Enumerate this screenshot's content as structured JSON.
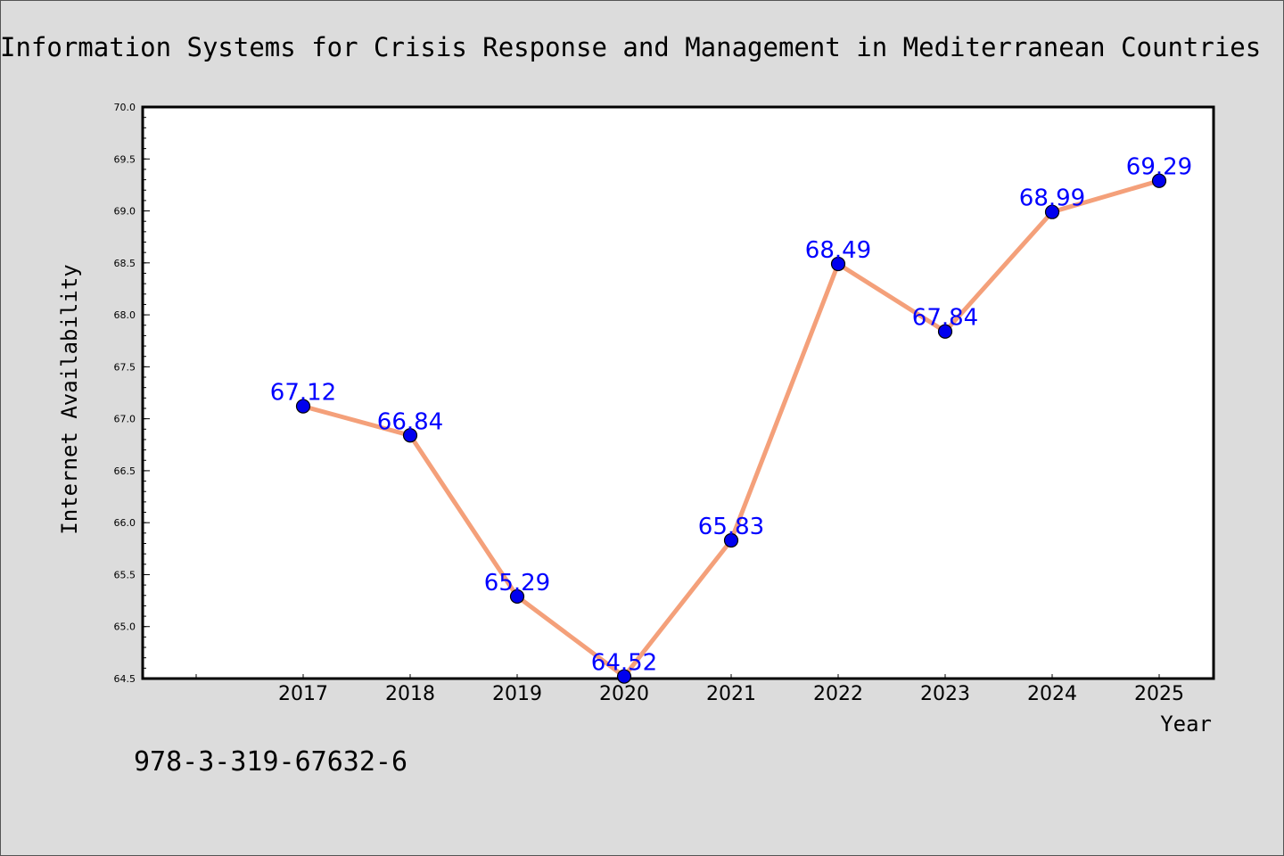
{
  "chart_data": {
    "type": "line",
    "title": "Information Systems for Crisis Response and Management in Mediterranean Countries",
    "xlabel": "Year",
    "ylabel": "Internet Availability",
    "categories": [
      "2017",
      "2018",
      "2019",
      "2020",
      "2021",
      "2022",
      "2023",
      "2024",
      "2025"
    ],
    "series": [
      {
        "values": [
          67.12,
          66.84,
          65.29,
          64.52,
          65.83,
          68.49,
          67.84,
          68.99,
          69.29
        ],
        "line_color": "#f4a07a",
        "marker_color": "#0000ee"
      }
    ],
    "data_labels": [
      "67.12",
      "66.84",
      "65.29",
      "64.52",
      "65.83",
      "68.49",
      "67.84",
      "68.99",
      "69.29"
    ],
    "ylim": [
      64.5,
      70.0
    ],
    "yticks": [
      "64.5",
      "65.0",
      "65.5",
      "66.0",
      "66.5",
      "67.0",
      "67.5",
      "68.0",
      "68.5",
      "69.0",
      "69.5",
      "70.0"
    ],
    "grid": false,
    "legend": "none",
    "label_color": "#0000ff"
  },
  "footnote": "978-3-319-67632-6"
}
